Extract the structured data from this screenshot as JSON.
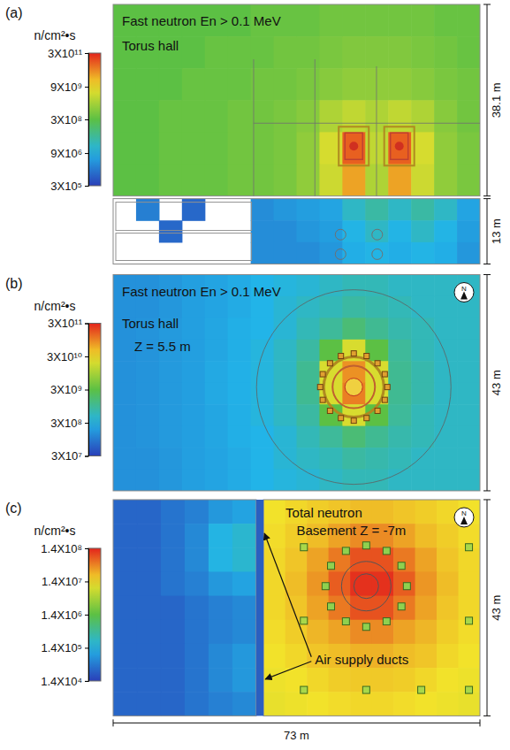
{
  "chart_data": [
    {
      "type": "heatmap",
      "panel_label": "(a)",
      "title": "Fast neutron En > 0.1 MeV",
      "subtitle": "Torus hall",
      "log": true,
      "colorbar": {
        "title": "n/cm²•s",
        "range": [
          300000.0,
          300000000000.0
        ],
        "ticks": [
          {
            "value": 300000000000.0,
            "label": "3X10¹¹"
          },
          {
            "value": 9000000000.0,
            "label": "9X10⁹"
          },
          {
            "value": 300000000.0,
            "label": "3X10⁸"
          },
          {
            "value": 9000000.0,
            "label": "9X10⁶"
          },
          {
            "value": 300000.0,
            "label": "3X10⁵"
          }
        ]
      },
      "dimensions": [
        {
          "value": 38.1,
          "label": "38.1 m"
        },
        {
          "value": 13,
          "label": "13 m"
        }
      ],
      "cells": {
        "hall": [
          [
            300000000.0,
            300000000.0,
            300000000.0,
            300000000.0,
            300000000.0,
            300000000.0,
            400000000.0,
            400000000.0,
            400000000.0,
            500000000.0,
            500000000.0,
            500000000.0,
            500000000.0,
            500000000.0,
            400000000.0,
            400000000.0
          ],
          [
            300000000.0,
            300000000.0,
            300000000.0,
            300000000.0,
            400000000.0,
            400000000.0,
            400000000.0,
            500000000.0,
            500000000.0,
            600000000.0,
            700000000.0,
            700000000.0,
            700000000.0,
            600000000.0,
            500000000.0,
            400000000.0
          ],
          [
            300000000.0,
            300000000.0,
            300000000.0,
            400000000.0,
            400000000.0,
            400000000.0,
            500000000.0,
            500000000.0,
            600000000.0,
            800000000.0,
            1000000000.0,
            1000000000.0,
            1000000000.0,
            800000000.0,
            600000000.0,
            500000000.0
          ],
          [
            300000000.0,
            300000000.0,
            400000000.0,
            400000000.0,
            400000000.0,
            500000000.0,
            500000000.0,
            600000000.0,
            800000000.0,
            2000000000.0,
            3000000000.0,
            2000000000.0,
            3000000000.0,
            2000000000.0,
            800000000.0,
            500000000.0
          ],
          [
            300000000.0,
            300000000.0,
            400000000.0,
            400000000.0,
            400000000.0,
            500000000.0,
            500000000.0,
            600000000.0,
            1000000000.0,
            5000000000.0,
            100000000000.0,
            3000000000.0,
            100000000000.0,
            5000000000.0,
            1000000000.0,
            600000000.0
          ],
          [
            300000000.0,
            300000000.0,
            400000000.0,
            400000000.0,
            400000000.0,
            500000000.0,
            500000000.0,
            600000000.0,
            1000000000.0,
            4000000000.0,
            30000000000.0,
            2000000000.0,
            30000000000.0,
            4000000000.0,
            1000000000.0,
            600000000.0
          ]
        ],
        "basement": [
          [
            null,
            2000000.0,
            null,
            1000000.0,
            null,
            null,
            3000000.0,
            4000000.0,
            5000000.0,
            6000000.0,
            20000000.0,
            40000000.0,
            20000000.0,
            40000000.0,
            20000000.0,
            6000000.0
          ],
          [
            null,
            null,
            1000000.0,
            null,
            null,
            null,
            3000000.0,
            3000000.0,
            4000000.0,
            5000000.0,
            10000000.0,
            20000000.0,
            10000000.0,
            20000000.0,
            10000000.0,
            5000000.0
          ],
          [
            null,
            null,
            null,
            null,
            null,
            null,
            3000000.0,
            3000000.0,
            3000000.0,
            4000000.0,
            8000000.0,
            10000000.0,
            8000000.0,
            10000000.0,
            8000000.0,
            4000000.0
          ]
        ]
      }
    },
    {
      "type": "heatmap",
      "panel_label": "(b)",
      "title": "Fast neutron En > 0.1 MeV",
      "subtitle": "Torus hall",
      "annotation": "Z = 5.5 m",
      "north": "N",
      "log": true,
      "colorbar": {
        "title": "n/cm²•s",
        "range": [
          30000000.0,
          300000000000.0
        ],
        "ticks": [
          {
            "value": 300000000000.0,
            "label": "3X10¹¹"
          },
          {
            "value": 30000000000.0,
            "label": "3X10¹⁰"
          },
          {
            "value": 3000000000.0,
            "label": "3X10⁹"
          },
          {
            "value": 300000000.0,
            "label": "3X10⁸"
          },
          {
            "value": 30000000.0,
            "label": "3X10⁷"
          }
        ]
      },
      "dimensions": [
        {
          "value": 43,
          "label": "43 m"
        }
      ],
      "cells": {
        "hall": [
          [
            150000000.0,
            150000000.0,
            170000000.0,
            200000000.0,
            220000000.0,
            250000000.0,
            300000000.0,
            350000000.0,
            400000000.0,
            500000000.0,
            600000000.0,
            600000000.0,
            500000000.0,
            500000000.0,
            500000000.0,
            500000000.0
          ],
          [
            150000000.0,
            150000000.0,
            170000000.0,
            200000000.0,
            220000000.0,
            250000000.0,
            300000000.0,
            400000000.0,
            500000000.0,
            600000000.0,
            800000000.0,
            700000000.0,
            600000000.0,
            500000000.0,
            500000000.0,
            500000000.0
          ],
          [
            150000000.0,
            160000000.0,
            180000000.0,
            200000000.0,
            230000000.0,
            270000000.0,
            300000000.0,
            400000000.0,
            600000000.0,
            900000000.0,
            1500000000.0,
            1000000000.0,
            700000000.0,
            600000000.0,
            500000000.0,
            500000000.0
          ],
          [
            150000000.0,
            160000000.0,
            180000000.0,
            200000000.0,
            230000000.0,
            270000000.0,
            350000000.0,
            500000000.0,
            800000000.0,
            3000000000.0,
            20000000000.0,
            3000000000.0,
            900000000.0,
            600000000.0,
            500000000.0,
            500000000.0
          ],
          [
            150000000.0,
            160000000.0,
            180000000.0,
            200000000.0,
            240000000.0,
            280000000.0,
            350000000.0,
            500000000.0,
            1000000000.0,
            20000000000.0,
            80000000000.0,
            20000000000.0,
            1000000000.0,
            700000000.0,
            500000000.0,
            500000000.0
          ],
          [
            150000000.0,
            160000000.0,
            180000000.0,
            200000000.0,
            240000000.0,
            280000000.0,
            350000000.0,
            500000000.0,
            1000000000.0,
            20000000000.0,
            100000000000.0,
            20000000000.0,
            1000000000.0,
            700000000.0,
            500000000.0,
            500000000.0
          ],
          [
            150000000.0,
            160000000.0,
            180000000.0,
            200000000.0,
            230000000.0,
            270000000.0,
            350000000.0,
            500000000.0,
            800000000.0,
            3000000000.0,
            20000000000.0,
            3000000000.0,
            900000000.0,
            600000000.0,
            500000000.0,
            500000000.0
          ],
          [
            150000000.0,
            160000000.0,
            180000000.0,
            200000000.0,
            230000000.0,
            270000000.0,
            300000000.0,
            400000000.0,
            600000000.0,
            900000000.0,
            1500000000.0,
            1000000000.0,
            700000000.0,
            600000000.0,
            500000000.0,
            500000000.0
          ],
          [
            150000000.0,
            150000000.0,
            170000000.0,
            200000000.0,
            220000000.0,
            250000000.0,
            300000000.0,
            400000000.0,
            500000000.0,
            600000000.0,
            800000000.0,
            700000000.0,
            600000000.0,
            500000000.0,
            500000000.0,
            500000000.0
          ],
          [
            150000000.0,
            150000000.0,
            170000000.0,
            200000000.0,
            220000000.0,
            250000000.0,
            300000000.0,
            350000000.0,
            400000000.0,
            500000000.0,
            600000000.0,
            600000000.0,
            500000000.0,
            500000000.0,
            500000000.0,
            500000000.0
          ]
        ]
      }
    },
    {
      "type": "heatmap",
      "panel_label": "(c)",
      "title": "Total neutron",
      "subtitle": "Basement Z = -7m",
      "annotation": "Air supply ducts",
      "north": "N",
      "log": true,
      "colorbar": {
        "title": "n/cm²•s",
        "range": [
          14000.0,
          140000000.0
        ],
        "ticks": [
          {
            "value": 140000000.0,
            "label": "1.4X10⁸"
          },
          {
            "value": 14000000.0,
            "label": "1.4X10⁷"
          },
          {
            "value": 1400000.0,
            "label": "1.4X10⁶"
          },
          {
            "value": 140000.0,
            "label": "1.4X10⁵"
          },
          {
            "value": 14000.0,
            "label": "1.4X10⁴"
          }
        ]
      },
      "dimensions": [
        {
          "value": 43,
          "label": "43 m"
        },
        {
          "value": 73,
          "label": "73 m"
        }
      ],
      "cells": {
        "left": [
          [
            30000.0,
            30000.0,
            40000.0,
            50000.0,
            80000.0,
            100000.0
          ],
          [
            30000.0,
            30000.0,
            40000.0,
            60000.0,
            150000.0,
            200000.0
          ],
          [
            30000.0,
            30000.0,
            40000.0,
            60000.0,
            150000.0,
            200000.0
          ],
          [
            30000.0,
            30000.0,
            40000.0,
            50000.0,
            80000.0,
            100000.0
          ],
          [
            30000.0,
            30000.0,
            30000.0,
            40000.0,
            50000.0,
            60000.0
          ],
          [
            30000.0,
            30000.0,
            30000.0,
            40000.0,
            50000.0,
            60000.0
          ],
          [
            30000.0,
            30000.0,
            30000.0,
            40000.0,
            60000.0,
            80000.0
          ],
          [
            30000.0,
            30000.0,
            30000.0,
            40000.0,
            60000.0,
            80000.0
          ],
          [
            30000.0,
            30000.0,
            30000.0,
            40000.0,
            50000.0,
            60000.0
          ]
        ],
        "right": [
          [
            14000000.0,
            16000000.0,
            18000000.0,
            20000000.0,
            22000000.0,
            22000000.0,
            20000000.0,
            18000000.0,
            16000000.0,
            14000000.0
          ],
          [
            15000000.0,
            18000000.0,
            22000000.0,
            30000000.0,
            40000000.0,
            40000000.0,
            30000000.0,
            22000000.0,
            18000000.0,
            15000000.0
          ],
          [
            16000000.0,
            20000000.0,
            30000000.0,
            50000000.0,
            80000000.0,
            80000000.0,
            50000000.0,
            30000000.0,
            20000000.0,
            16000000.0
          ],
          [
            16000000.0,
            22000000.0,
            35000000.0,
            70000000.0,
            120000000.0,
            120000000.0,
            70000000.0,
            35000000.0,
            22000000.0,
            16000000.0
          ],
          [
            16000000.0,
            20000000.0,
            30000000.0,
            50000000.0,
            80000000.0,
            80000000.0,
            50000000.0,
            30000000.0,
            20000000.0,
            16000000.0
          ],
          [
            15000000.0,
            18000000.0,
            24000000.0,
            30000000.0,
            40000000.0,
            40000000.0,
            30000000.0,
            24000000.0,
            18000000.0,
            15000000.0
          ],
          [
            14000000.0,
            16000000.0,
            20000000.0,
            22000000.0,
            25000000.0,
            25000000.0,
            22000000.0,
            20000000.0,
            16000000.0,
            14000000.0
          ],
          [
            13000000.0,
            14000000.0,
            16000000.0,
            18000000.0,
            19000000.0,
            19000000.0,
            18000000.0,
            16000000.0,
            14000000.0,
            13000000.0
          ],
          [
            12000000.0,
            13000000.0,
            14000000.0,
            15000000.0,
            16000000.0,
            16000000.0,
            15000000.0,
            14000000.0,
            13000000.0,
            12000000.0
          ]
        ]
      }
    }
  ]
}
